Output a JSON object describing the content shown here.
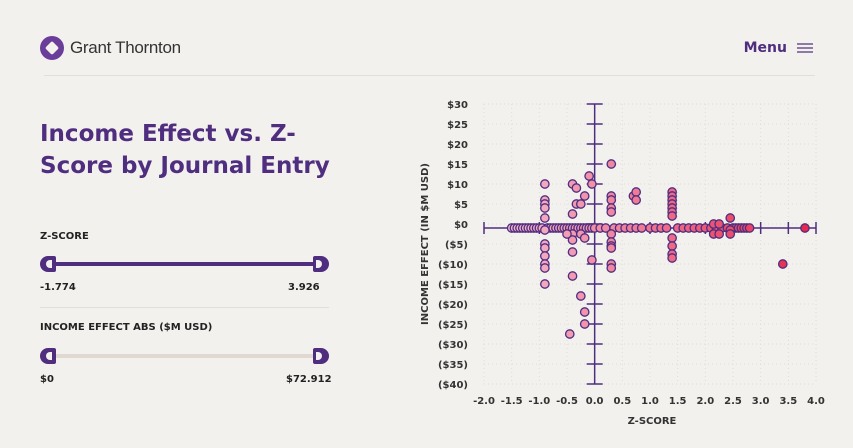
{
  "header": {
    "brand": "Grant Thornton",
    "menu_label": "Menu"
  },
  "title": "Income Effect vs. Z-Score by Journal Entry",
  "filters": [
    {
      "label": "Z-SCORE",
      "min": "-1.774",
      "max": "3.926",
      "active": true
    },
    {
      "label": "INCOME EFFECT ABS ($M USD)",
      "min": "$0",
      "max": "$72.912",
      "active": false
    }
  ],
  "colors": {
    "accent": "#4f2d7f",
    "low": "#f4b8cc",
    "high": "#e8284a"
  },
  "chart_data": {
    "type": "scatter",
    "xlabel": "Z-SCORE",
    "ylabel": "INCOME EFFECT (IN $M USD)",
    "xlim": [
      -2,
      4
    ],
    "ylim": [
      -40,
      30
    ],
    "xticks": [
      "-2.0",
      "-1.5",
      "-1.0",
      "-0.5",
      "0.0",
      "0.5",
      "1.0",
      "1.5",
      "2.0",
      "2.5",
      "3.0",
      "3.5",
      "4.0"
    ],
    "yticks": [
      "$30",
      "$25",
      "$20",
      "$15",
      "$10",
      "$5",
      "$0",
      "($5)",
      "($10)",
      "($15)",
      "($20)",
      "($25)",
      "($30)",
      "($35)",
      "($40)"
    ],
    "grid": true,
    "points": [
      [
        -1.5,
        -1
      ],
      [
        -1.45,
        -1
      ],
      [
        -1.4,
        -1
      ],
      [
        -1.35,
        -1
      ],
      [
        -1.3,
        -1
      ],
      [
        -1.25,
        -1
      ],
      [
        -1.2,
        -1
      ],
      [
        -1.15,
        -1
      ],
      [
        -1.1,
        -1
      ],
      [
        -1.05,
        -1
      ],
      [
        -1.0,
        -1
      ],
      [
        -0.95,
        -1
      ],
      [
        -0.85,
        -1
      ],
      [
        -0.8,
        -1
      ],
      [
        -0.75,
        -1
      ],
      [
        -0.7,
        -1
      ],
      [
        -0.65,
        -1
      ],
      [
        -0.6,
        -1
      ],
      [
        -0.55,
        -1
      ],
      [
        -0.5,
        -1
      ],
      [
        -0.45,
        -1
      ],
      [
        -0.4,
        -1
      ],
      [
        -0.35,
        -1
      ],
      [
        -0.3,
        -1
      ],
      [
        -0.25,
        -1
      ],
      [
        -0.2,
        -1
      ],
      [
        -0.15,
        -1
      ],
      [
        -0.1,
        -1
      ],
      [
        -0.05,
        -1
      ],
      [
        0.0,
        -1
      ],
      [
        0.1,
        -1
      ],
      [
        0.2,
        -1
      ],
      [
        0.35,
        -1
      ],
      [
        0.45,
        -1
      ],
      [
        0.55,
        -1
      ],
      [
        0.65,
        -1
      ],
      [
        0.75,
        -1
      ],
      [
        0.85,
        -1
      ],
      [
        1.0,
        -1
      ],
      [
        1.1,
        -1
      ],
      [
        1.2,
        -1
      ],
      [
        1.3,
        -1
      ],
      [
        1.5,
        -1
      ],
      [
        1.6,
        -1
      ],
      [
        1.7,
        -1
      ],
      [
        1.8,
        -1
      ],
      [
        1.9,
        -1
      ],
      [
        2.0,
        -1
      ],
      [
        2.1,
        -1
      ],
      [
        2.2,
        -1
      ],
      [
        2.3,
        -1
      ],
      [
        2.4,
        -1
      ],
      [
        2.5,
        -1
      ],
      [
        2.55,
        -1
      ],
      [
        2.6,
        -1
      ],
      [
        2.65,
        -1
      ],
      [
        2.7,
        -1
      ],
      [
        2.75,
        -1
      ],
      [
        2.8,
        -1
      ],
      [
        -0.9,
        10
      ],
      [
        -0.9,
        6
      ],
      [
        -0.9,
        5
      ],
      [
        -0.9,
        4
      ],
      [
        -0.9,
        1.5
      ],
      [
        -0.9,
        -1.5
      ],
      [
        -0.9,
        -5
      ],
      [
        -0.9,
        -6
      ],
      [
        -0.9,
        -8
      ],
      [
        -0.9,
        -10
      ],
      [
        -0.9,
        -11
      ],
      [
        -0.9,
        -15
      ],
      [
        -0.4,
        10
      ],
      [
        -0.4,
        2.5
      ],
      [
        -0.4,
        -2.5
      ],
      [
        -0.4,
        -4
      ],
      [
        -0.4,
        -7
      ],
      [
        -0.4,
        -13
      ],
      [
        -0.33,
        9
      ],
      [
        -0.33,
        5
      ],
      [
        -0.25,
        5
      ],
      [
        -0.25,
        -2.5
      ],
      [
        -0.5,
        -2.5
      ],
      [
        -0.18,
        7
      ],
      [
        -0.18,
        -3.5
      ],
      [
        -0.18,
        -22
      ],
      [
        -0.18,
        -25
      ],
      [
        -0.25,
        -18
      ],
      [
        -0.45,
        -27.5
      ],
      [
        -0.1,
        12
      ],
      [
        -0.05,
        10
      ],
      [
        -0.05,
        -9
      ],
      [
        0.3,
        15
      ],
      [
        0.3,
        7
      ],
      [
        0.3,
        6
      ],
      [
        0.3,
        4
      ],
      [
        0.3,
        3
      ],
      [
        0.3,
        -2.5
      ],
      [
        0.3,
        -4.5
      ],
      [
        0.3,
        -5.5
      ],
      [
        0.3,
        -6
      ],
      [
        0.3,
        -10
      ],
      [
        0.3,
        -11
      ],
      [
        0.7,
        7
      ],
      [
        0.75,
        8
      ],
      [
        0.75,
        6
      ],
      [
        1.4,
        8
      ],
      [
        1.4,
        7
      ],
      [
        1.4,
        6
      ],
      [
        1.4,
        5
      ],
      [
        1.4,
        4
      ],
      [
        1.4,
        3
      ],
      [
        1.4,
        2
      ],
      [
        1.4,
        -3.5
      ],
      [
        1.4,
        -5.5
      ],
      [
        1.4,
        -7.5
      ],
      [
        1.4,
        -8.5
      ],
      [
        2.15,
        0
      ],
      [
        2.15,
        -2.5
      ],
      [
        2.25,
        0
      ],
      [
        2.25,
        -2.5
      ],
      [
        2.45,
        1.5
      ],
      [
        2.45,
        -1.5
      ],
      [
        2.45,
        -2.5
      ],
      [
        3.4,
        -10
      ],
      [
        3.8,
        -1
      ]
    ]
  }
}
